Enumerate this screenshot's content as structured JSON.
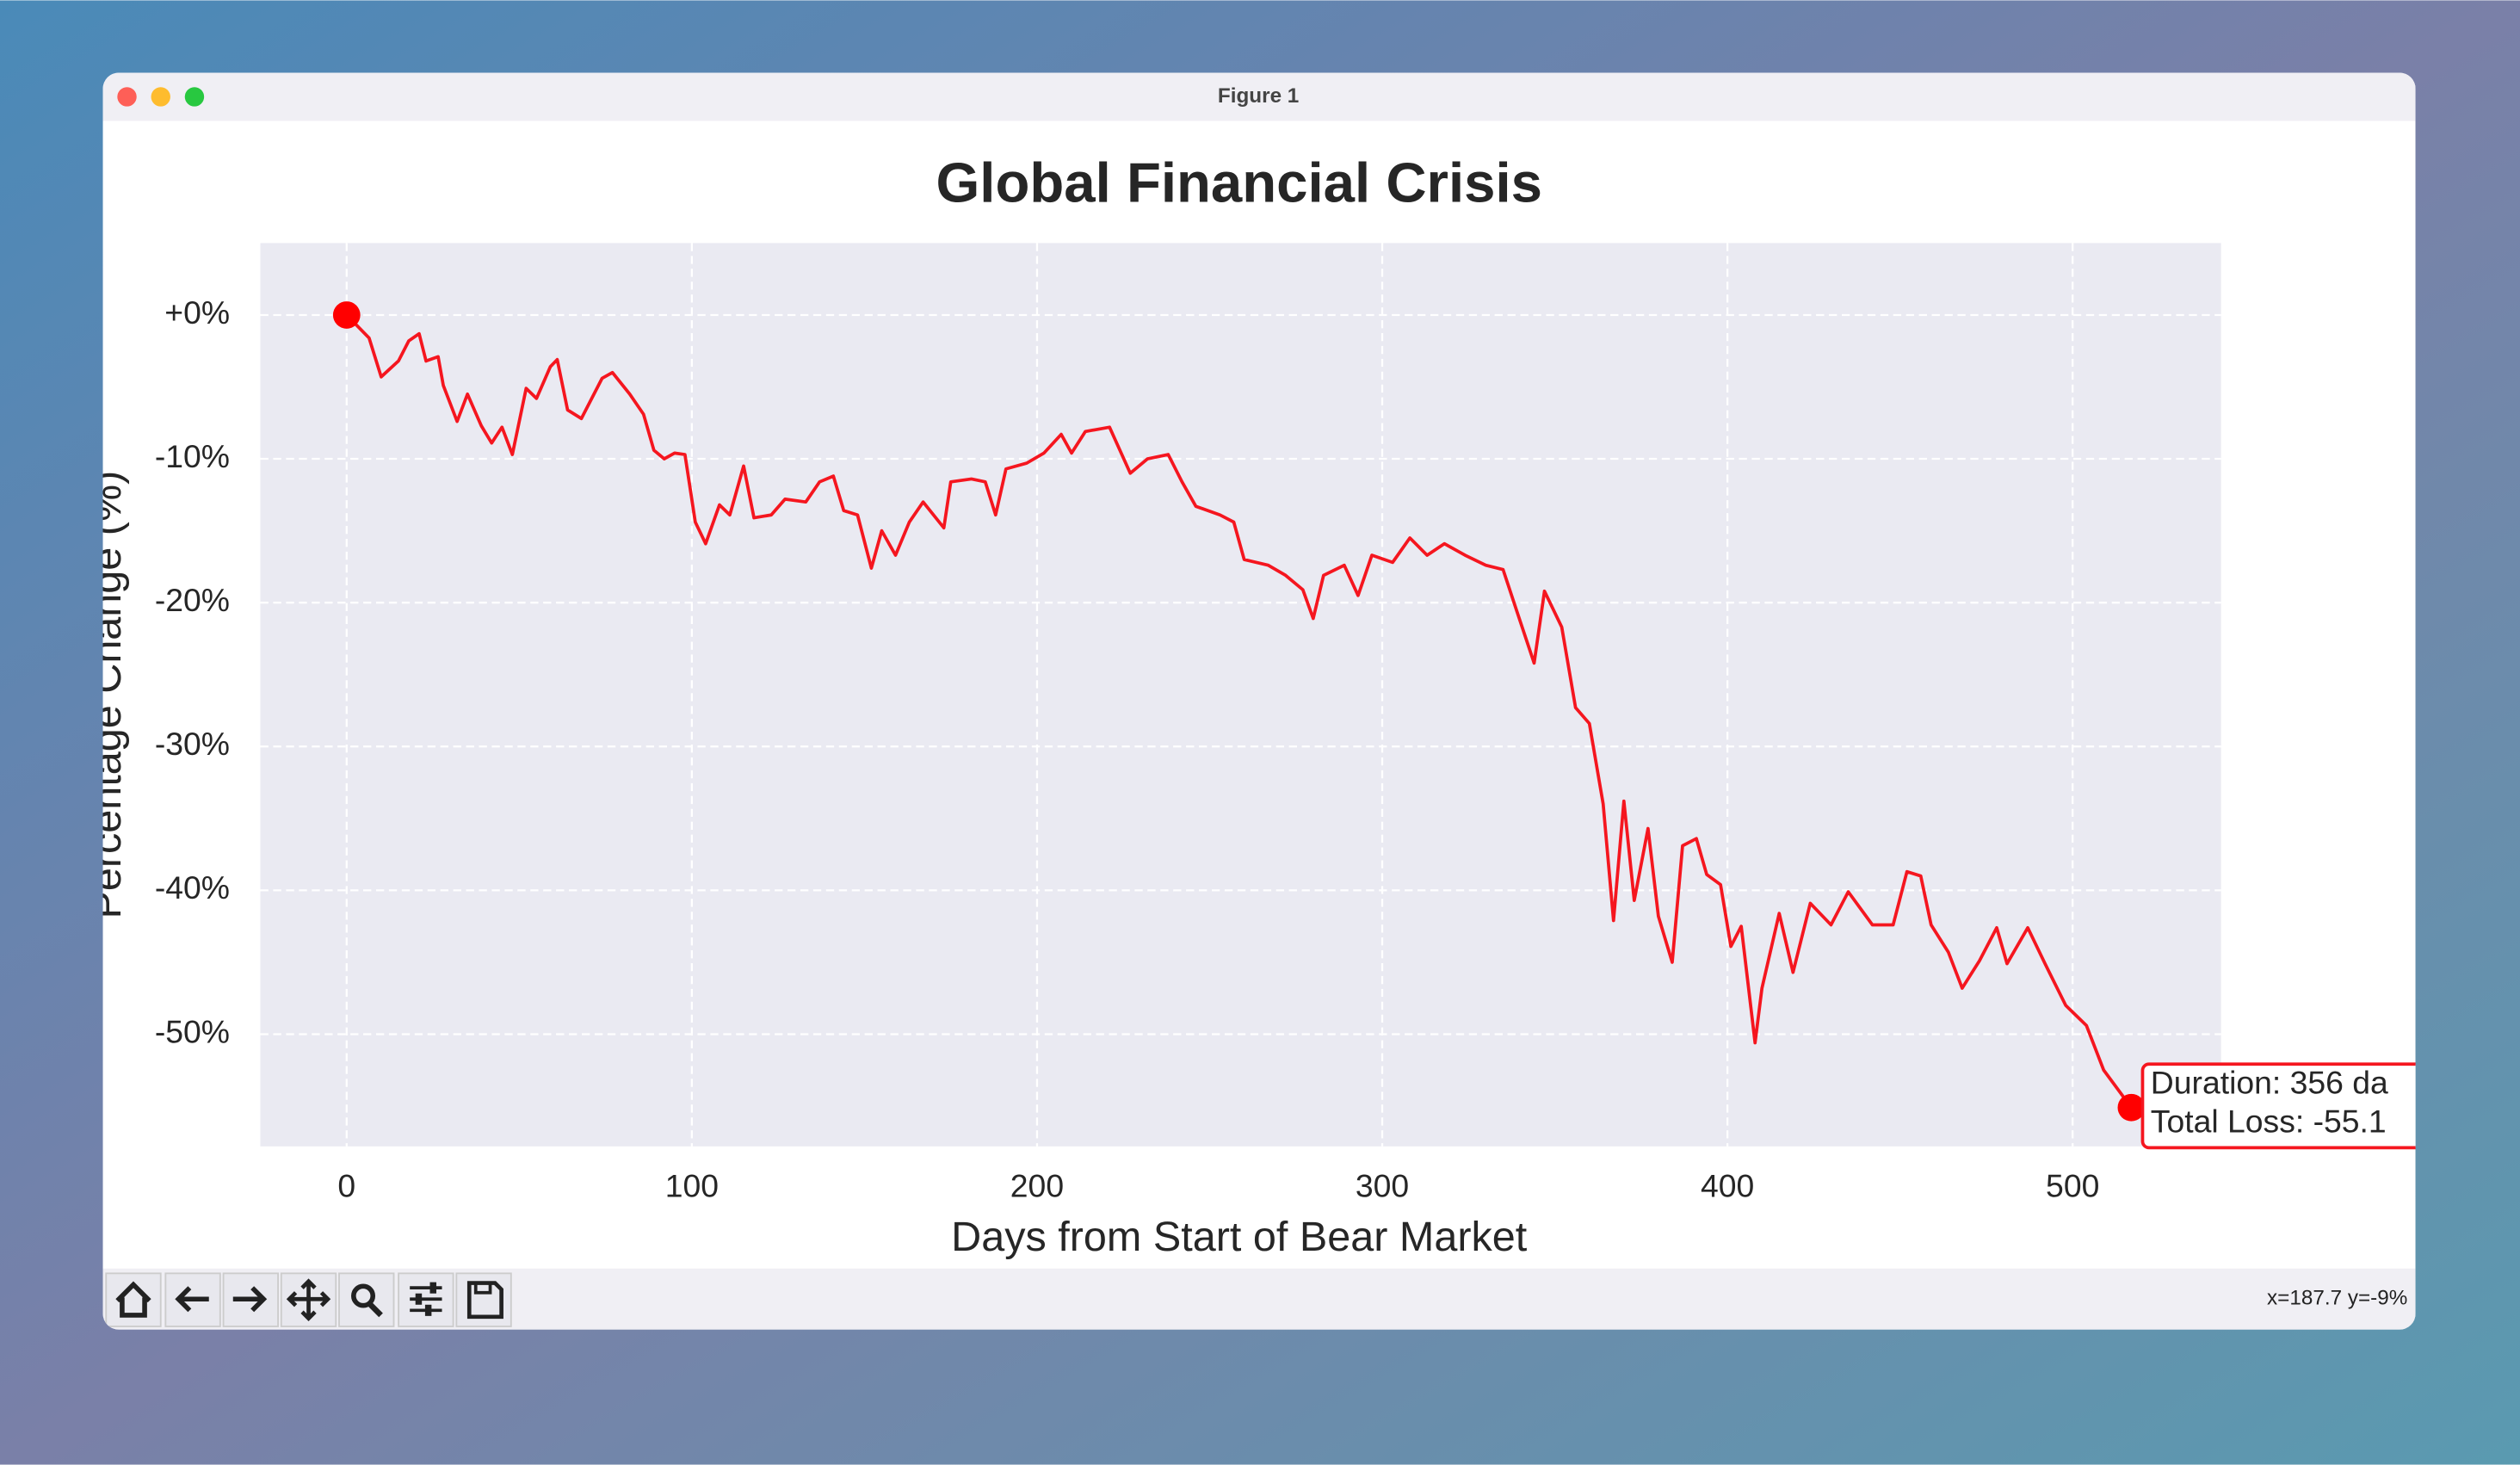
{
  "window": {
    "title": "Figure 1",
    "status": "x=187.7 y=-9%"
  },
  "chart_data": {
    "type": "line",
    "title": "Global Financial Crisis",
    "x_label": "Days from Start of Bear Market",
    "y_label": "Percentage Change (%)",
    "x": [
      0,
      6.5,
      10,
      15,
      18,
      21,
      23,
      26.5,
      28,
      32,
      35,
      39,
      42,
      45,
      48,
      52,
      55,
      59,
      61,
      64,
      68,
      74,
      77,
      82,
      86,
      89,
      92,
      95,
      98,
      101,
      104,
      108,
      111,
      115,
      118,
      123,
      127,
      133,
      137,
      141,
      144,
      148,
      152,
      155,
      159,
      163,
      167,
      173,
      175,
      181,
      185,
      188,
      191,
      197,
      202,
      207,
      210,
      214,
      221,
      227,
      232,
      238,
      242,
      246,
      253,
      257,
      260,
      267,
      272,
      277,
      280,
      283,
      289,
      293,
      297,
      303,
      308,
      313,
      318,
      324,
      330,
      335,
      339,
      344,
      347,
      352,
      356,
      360,
      364,
      367,
      370,
      373,
      377,
      380,
      384,
      387,
      391,
      394,
      398,
      401,
      404,
      408,
      410,
      415,
      419,
      424,
      430,
      435,
      442,
      448,
      452,
      456,
      459,
      464,
      468,
      473,
      478,
      481,
      487,
      492,
      498,
      504,
      509,
      517
    ],
    "series": [
      {
        "name": "Percentage Change",
        "color": "#f5161f",
        "values": [
          0,
          -1.6,
          -4.3,
          -3.2,
          -1.8,
          -1.3,
          -3.2,
          -2.9,
          -4.9,
          -7.4,
          -5.5,
          -7.7,
          -8.9,
          -7.8,
          -9.7,
          -5.1,
          -5.8,
          -3.6,
          -3.1,
          -6.6,
          -7.2,
          -4.4,
          -4.0,
          -5.5,
          -6.9,
          -9.4,
          -10.0,
          -9.6,
          -9.7,
          -14.4,
          -15.9,
          -13.2,
          -13.9,
          -10.5,
          -14.1,
          -13.9,
          -12.8,
          -13.0,
          -11.6,
          -11.2,
          -13.6,
          -13.9,
          -17.6,
          -15.0,
          -16.7,
          -14.4,
          -13.0,
          -14.8,
          -11.6,
          -11.4,
          -11.6,
          -13.9,
          -10.7,
          -10.3,
          -9.6,
          -8.3,
          -9.6,
          -8.1,
          -7.8,
          -11.0,
          -10.0,
          -9.7,
          -11.6,
          -13.3,
          -13.9,
          -14.4,
          -17.0,
          -17.4,
          -18.1,
          -19.1,
          -21.1,
          -18.1,
          -17.4,
          -19.5,
          -16.7,
          -17.2,
          -15.5,
          -16.7,
          -15.9,
          -16.7,
          -17.4,
          -17.7,
          -20.6,
          -24.2,
          -19.2,
          -21.7,
          -27.3,
          -28.4,
          -34.0,
          -42.1,
          -33.8,
          -40.7,
          -35.7,
          -41.8,
          -45.0,
          -36.9,
          -36.4,
          -38.9,
          -39.6,
          -43.9,
          -42.5,
          -50.6,
          -46.8,
          -41.6,
          -45.7,
          -40.9,
          -42.4,
          -40.1,
          -42.4,
          -42.4,
          -38.7,
          -39.0,
          -42.4,
          -44.3,
          -46.8,
          -44.9,
          -42.6,
          -45.1,
          -42.6,
          -45.1,
          -48.0,
          -49.4,
          -52.5,
          -55.1
        ]
      }
    ],
    "xlim": [
      -25,
      543
    ],
    "xticks": [
      0,
      100,
      200,
      300,
      400,
      500
    ],
    "ylim": [
      -57.8,
      5
    ],
    "yticks": [
      {
        "value": 0,
        "label": "+0%"
      },
      {
        "value": -10,
        "label": "-10%"
      },
      {
        "value": -20,
        "label": "-20%"
      },
      {
        "value": -30,
        "label": "-30%"
      },
      {
        "value": -40,
        "label": "-40%"
      },
      {
        "value": -50,
        "label": "-50%"
      }
    ],
    "grid": true,
    "annotation": [
      "Duration: 356 da",
      "Total Loss: -55.1"
    ]
  }
}
